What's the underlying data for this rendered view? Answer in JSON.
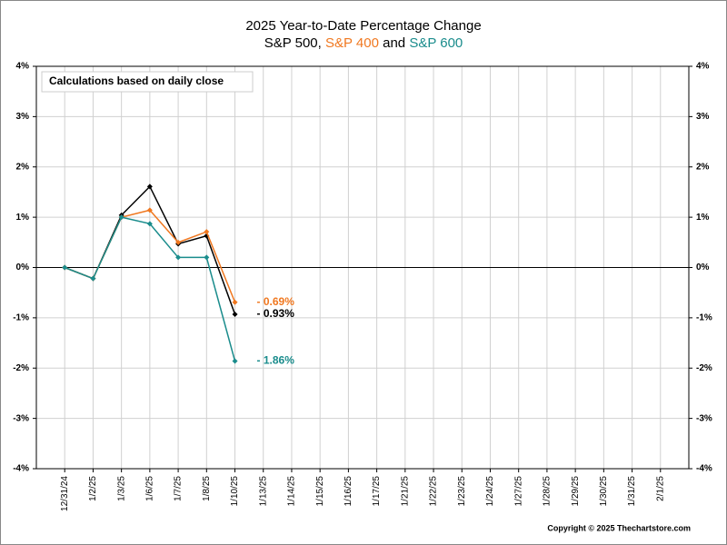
{
  "chart_data": {
    "type": "line",
    "title": "2025 Year-to-Date Percentage Change",
    "legend_separators": [
      ", ",
      " and "
    ],
    "annotation": "Calculations based on daily close",
    "credit": "Copyright © 2025 Thechartstore.com",
    "categories": [
      "12/31/24",
      "1/2/25",
      "1/3/25",
      "1/6/25",
      "1/7/25",
      "1/8/25",
      "1/10/25",
      "1/13/25",
      "1/14/25",
      "1/15/25",
      "1/16/25",
      "1/17/25",
      "1/21/25",
      "1/22/25",
      "1/23/25",
      "1/24/25",
      "1/27/25",
      "1/28/25",
      "1/29/25",
      "1/30/25",
      "1/31/25",
      "2/1/25"
    ],
    "series": [
      {
        "name": "S&P 500",
        "color": "#000000",
        "values": [
          0,
          -0.22,
          1.04,
          1.61,
          0.47,
          0.63,
          -0.93,
          null,
          null,
          null,
          null,
          null,
          null,
          null,
          null,
          null,
          null,
          null,
          null,
          null,
          null,
          null
        ],
        "value_labels": [
          null,
          null,
          null,
          null,
          null,
          null,
          "- 0.93%",
          null,
          null,
          null,
          null,
          null,
          null,
          null,
          null,
          null,
          null,
          null,
          null,
          null,
          null,
          null
        ]
      },
      {
        "name": "S&P 400",
        "color": "#f07820",
        "values": [
          0,
          -0.22,
          1.0,
          1.14,
          0.5,
          0.71,
          -0.69,
          null,
          null,
          null,
          null,
          null,
          null,
          null,
          null,
          null,
          null,
          null,
          null,
          null,
          null,
          null
        ],
        "value_labels": [
          null,
          null,
          null,
          null,
          null,
          null,
          "- 0.69%",
          null,
          null,
          null,
          null,
          null,
          null,
          null,
          null,
          null,
          null,
          null,
          null,
          null,
          null,
          null
        ]
      },
      {
        "name": "S&P 600",
        "color": "#1a8c8c",
        "values": [
          0,
          -0.22,
          1.0,
          0.87,
          0.2,
          0.2,
          -1.86,
          null,
          null,
          null,
          null,
          null,
          null,
          null,
          null,
          null,
          null,
          null,
          null,
          null,
          null,
          null
        ],
        "value_labels": [
          null,
          null,
          null,
          null,
          null,
          null,
          "- 1.86%",
          null,
          null,
          null,
          null,
          null,
          null,
          null,
          null,
          null,
          null,
          null,
          null,
          null,
          null,
          null
        ]
      }
    ],
    "ylim": [
      -4,
      4
    ],
    "yticks": [
      {
        "value": -4,
        "label": "-4%"
      },
      {
        "value": -3,
        "label": "-3%"
      },
      {
        "value": -2,
        "label": "-2%"
      },
      {
        "value": -1,
        "label": "-1%"
      },
      {
        "value": 0,
        "label": "0%"
      },
      {
        "value": 1,
        "label": "1%"
      },
      {
        "value": 2,
        "label": "2%"
      },
      {
        "value": 3,
        "label": "3%"
      },
      {
        "value": 4,
        "label": "4%"
      }
    ],
    "grid": true
  }
}
